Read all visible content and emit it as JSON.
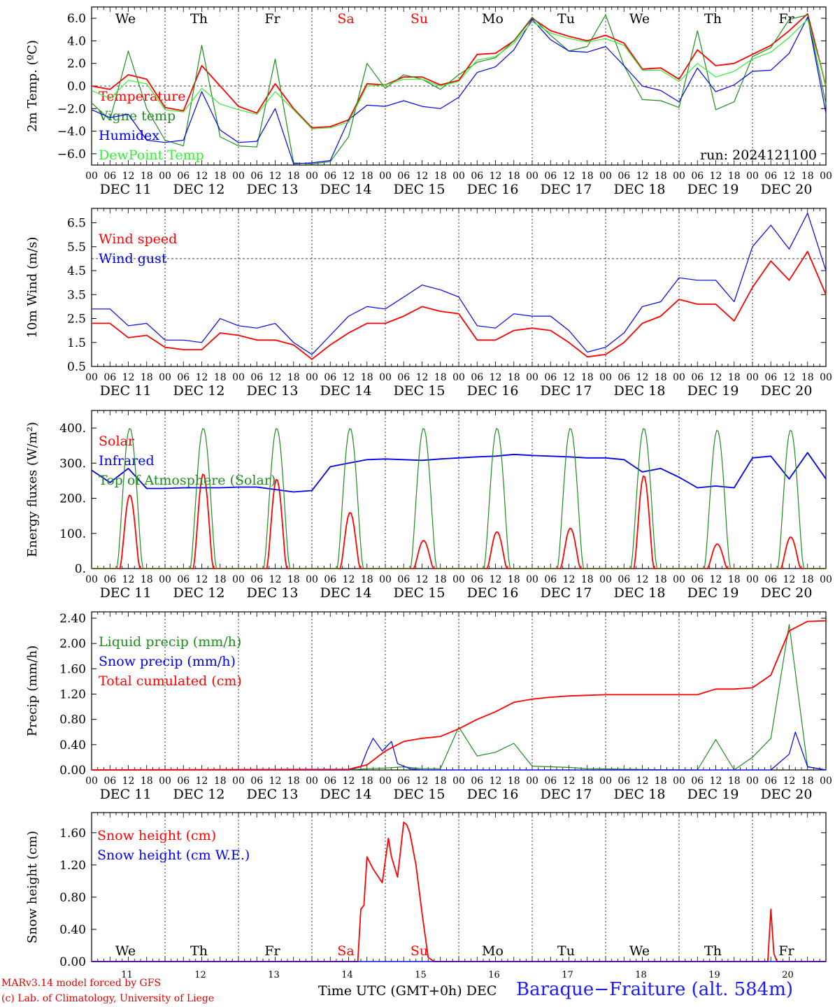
{
  "run_label": "run: 2024121100",
  "footer": {
    "credit_line1": "MARv3.14 model forced by GFS",
    "credit_line2": "(c) Lab. of Climatology, University of Liege",
    "time_axis": "Time UTC (GMT+0h)",
    "station": "Baraque−Fraiture (alt. 584m)"
  },
  "colors": {
    "red": "#ff0000",
    "green": "#1e8c1e",
    "blue": "#0000ee",
    "light_green": "#33ee33",
    "weekend": "#ff0000"
  },
  "days": [
    {
      "abbr": "We",
      "date": "DEC 11",
      "num": "11",
      "weekend": false
    },
    {
      "abbr": "Th",
      "date": "DEC 12",
      "num": "12",
      "weekend": false
    },
    {
      "abbr": "Fr",
      "date": "DEC 13",
      "num": "13",
      "weekend": false
    },
    {
      "abbr": "Sa",
      "date": "DEC 14",
      "num": "14",
      "weekend": true
    },
    {
      "abbr": "Su",
      "date": "DEC 15",
      "num": "15",
      "weekend": true
    },
    {
      "abbr": "Mo",
      "date": "DEC 16",
      "num": "16",
      "weekend": false
    },
    {
      "abbr": "Tu",
      "date": "DEC 17",
      "num": "17",
      "weekend": false
    },
    {
      "abbr": "We",
      "date": "DEC 18",
      "num": "18",
      "weekend": false
    },
    {
      "abbr": "Th",
      "date": "DEC 19",
      "num": "19",
      "weekend": false
    },
    {
      "abbr": "Fr",
      "date": "DEC 20",
      "num": "20",
      "weekend": false
    }
  ],
  "hour_labels": [
    "00",
    "06",
    "12",
    "18"
  ],
  "last_hour_label": "00",
  "dec_label": "DEC",
  "chart_data": [
    {
      "id": "temperature",
      "type": "line",
      "ylabel": "2m Temp. (ºC)",
      "ylim": [
        -7,
        7
      ],
      "yticks": [
        "6.0",
        "4.0",
        "2.0",
        "0.0",
        "−2.0",
        "−4.0",
        "−6.0"
      ],
      "ytick_values": [
        6,
        4,
        2,
        0,
        -2,
        -4,
        -6
      ],
      "reference_line": 0,
      "x_unit": "hours since Dec 11 00 UTC",
      "series": [
        {
          "name": "Temperature",
          "color": "red",
          "x": [
            0,
            6,
            12,
            18,
            24,
            30,
            36,
            42,
            48,
            54,
            60,
            66,
            72,
            78,
            84,
            90,
            96,
            102,
            108,
            114,
            120,
            126,
            132,
            138,
            144,
            150,
            156,
            162,
            168,
            174,
            180,
            186,
            192,
            198,
            204,
            210,
            216,
            222,
            228,
            234,
            240
          ],
          "values": [
            0,
            -0.3,
            1.0,
            0.6,
            -1.9,
            -2.2,
            1.8,
            0,
            -1.8,
            -2.4,
            0.2,
            -2.0,
            -3.7,
            -3.6,
            -3.0,
            0.2,
            0.1,
            0.8,
            0.8,
            0.1,
            0.5,
            2.8,
            2.9,
            4.0,
            6.0,
            4.9,
            4.4,
            4.0,
            4.5,
            3.8,
            1.5,
            1.6,
            0.6,
            3.2,
            1.8,
            2.0,
            2.8,
            3.6,
            4.9,
            6.4,
            0
          ]
        },
        {
          "name": "Vigne temp",
          "color": "green",
          "x": [
            0,
            6,
            12,
            18,
            24,
            30,
            36,
            42,
            48,
            54,
            60,
            66,
            72,
            78,
            84,
            90,
            96,
            102,
            108,
            114,
            120,
            126,
            132,
            138,
            144,
            150,
            156,
            162,
            168,
            174,
            180,
            186,
            192,
            198,
            204,
            210,
            216,
            222,
            228,
            234,
            240
          ],
          "values": [
            -1.5,
            -3.0,
            3.1,
            -2.0,
            -4.8,
            -5.3,
            3.6,
            -4.5,
            -5.3,
            -5.4,
            2.4,
            -6.8,
            -6.9,
            -6.7,
            -4.5,
            2.0,
            -0.2,
            1.0,
            0.6,
            -0.3,
            1.0,
            2.1,
            2.5,
            4.0,
            6.1,
            4.5,
            3.1,
            3.5,
            6.3,
            1.8,
            -1.2,
            -1.3,
            -1.9,
            4.9,
            -2.1,
            -1.4,
            2.6,
            3.4,
            5.9,
            6.3,
            -1.6
          ]
        },
        {
          "name": "Humidex",
          "color": "blue",
          "x": [
            0,
            6,
            12,
            18,
            24,
            30,
            36,
            42,
            48,
            54,
            60,
            66,
            72,
            78,
            84,
            90,
            96,
            102,
            108,
            114,
            120,
            126,
            132,
            138,
            144,
            150,
            156,
            162,
            168,
            174,
            180,
            186,
            192,
            198,
            204,
            210,
            216,
            222,
            228,
            234,
            240
          ],
          "values": [
            -2.1,
            -2.8,
            -2.5,
            -4.8,
            -5.0,
            -4.8,
            -0.5,
            -3.9,
            -5.0,
            -4.9,
            -2.0,
            -6.9,
            -6.8,
            -6.6,
            -3.0,
            -1.7,
            -1.8,
            -1.3,
            -1.8,
            -2.0,
            -1.0,
            1.2,
            1.7,
            3.2,
            5.9,
            4.1,
            3.1,
            3.0,
            3.5,
            1.8,
            0,
            -0.4,
            -1.4,
            1.6,
            -0.5,
            0.1,
            1.3,
            1.4,
            2.9,
            6.1,
            -2.4
          ]
        },
        {
          "name": "DewPoint Temp",
          "color": "light_green",
          "x": [
            0,
            6,
            12,
            18,
            24,
            30,
            36,
            42,
            48,
            54,
            60,
            66,
            72,
            78,
            84,
            90,
            96,
            102,
            108,
            114,
            120,
            126,
            132,
            138,
            144,
            150,
            156,
            162,
            168,
            174,
            180,
            186,
            192,
            198,
            204,
            210,
            216,
            222,
            228,
            234,
            240
          ],
          "values": [
            -0.4,
            -1.1,
            0.5,
            0.2,
            -2.1,
            -2.3,
            -0.2,
            -1.6,
            -2.1,
            -2.5,
            -0.5,
            -2.1,
            -3.8,
            -3.7,
            -3.2,
            0,
            0.1,
            0.6,
            0.6,
            0,
            0.4,
            2.3,
            2.6,
            3.8,
            5.7,
            4.7,
            4.2,
            3.9,
            4.2,
            3.6,
            1.4,
            1.4,
            0.4,
            2.0,
            0.8,
            1.3,
            2.4,
            3.0,
            4.3,
            5.9,
            0.1
          ]
        }
      ]
    },
    {
      "id": "wind",
      "type": "line",
      "ylabel": "10m Wind (m/s)",
      "ylim": [
        0.5,
        7.1
      ],
      "yticks": [
        "6.5",
        "5.5",
        "4.5",
        "3.5",
        "2.5",
        "1.5",
        "0.5"
      ],
      "ytick_values": [
        6.5,
        5.5,
        4.5,
        3.5,
        2.5,
        1.5,
        0.5
      ],
      "reference_line": 5,
      "x_unit": "hours since Dec 11 00 UTC",
      "series": [
        {
          "name": "Wind speed",
          "color": "red",
          "x": [
            0,
            6,
            12,
            18,
            24,
            30,
            36,
            42,
            48,
            54,
            60,
            66,
            72,
            78,
            84,
            90,
            96,
            102,
            108,
            114,
            120,
            126,
            132,
            138,
            144,
            150,
            156,
            162,
            168,
            174,
            180,
            186,
            192,
            198,
            204,
            210,
            216,
            222,
            228,
            234,
            240
          ],
          "values": [
            2.3,
            2.3,
            1.7,
            1.8,
            1.3,
            1.2,
            1.2,
            1.9,
            1.8,
            1.6,
            1.6,
            1.4,
            0.8,
            1.4,
            1.9,
            2.3,
            2.3,
            2.6,
            3.0,
            2.8,
            2.7,
            1.6,
            1.6,
            2.0,
            2.1,
            2.0,
            1.5,
            0.9,
            1.0,
            1.5,
            2.3,
            2.6,
            3.3,
            3.1,
            3.1,
            2.4,
            3.8,
            4.9,
            4.1,
            5.3,
            3.5
          ]
        },
        {
          "name": "Wind gust",
          "color": "blue",
          "x": [
            0,
            6,
            12,
            18,
            24,
            30,
            36,
            42,
            48,
            54,
            60,
            66,
            72,
            78,
            84,
            90,
            96,
            102,
            108,
            114,
            120,
            126,
            132,
            138,
            144,
            150,
            156,
            162,
            168,
            174,
            180,
            186,
            192,
            198,
            204,
            210,
            216,
            222,
            228,
            234,
            240
          ],
          "values": [
            2.9,
            2.9,
            2.2,
            2.3,
            1.6,
            1.6,
            1.5,
            2.5,
            2.2,
            2.1,
            2.3,
            1.5,
            1.0,
            1.8,
            2.6,
            3.0,
            2.9,
            3.4,
            3.9,
            3.7,
            3.4,
            2.2,
            2.1,
            2.7,
            2.6,
            2.6,
            2.0,
            1.1,
            1.3,
            1.9,
            3.0,
            3.2,
            4.2,
            4.1,
            4.1,
            3.2,
            5.5,
            6.4,
            5.4,
            6.9,
            4.5
          ]
        }
      ]
    },
    {
      "id": "energy",
      "type": "line",
      "ylabel": "Energy fluxes (W/m²)",
      "ylim": [
        0,
        450
      ],
      "yticks": [
        "400.",
        "300.",
        "200.",
        "100.",
        "0."
      ],
      "ytick_values": [
        400,
        300,
        200,
        100,
        0
      ],
      "x_unit": "hours since Dec 11 00 UTC",
      "series": [
        {
          "name": "Solar",
          "color": "red",
          "peaks": [
            210,
            270,
            255,
            160,
            80,
            105,
            115,
            265,
            70,
            90
          ]
        },
        {
          "name": "Infrared",
          "color": "blue",
          "x": [
            0,
            6,
            12,
            18,
            24,
            30,
            36,
            42,
            48,
            54,
            60,
            66,
            72,
            78,
            84,
            90,
            96,
            102,
            108,
            114,
            120,
            126,
            132,
            138,
            144,
            150,
            156,
            162,
            168,
            174,
            180,
            186,
            192,
            198,
            204,
            210,
            216,
            222,
            228,
            234,
            240
          ],
          "values": [
            280,
            245,
            285,
            228,
            228,
            230,
            230,
            230,
            232,
            232,
            225,
            218,
            222,
            290,
            300,
            310,
            312,
            310,
            308,
            312,
            315,
            318,
            320,
            325,
            322,
            320,
            318,
            315,
            315,
            310,
            275,
            285,
            260,
            230,
            235,
            230,
            315,
            320,
            255,
            330,
            255
          ]
        },
        {
          "name": "Top of Atmosphere (Solar)",
          "color": "green",
          "peaks": [
            400,
            400,
            400,
            400,
            400,
            400,
            400,
            400,
            395,
            395
          ]
        }
      ]
    },
    {
      "id": "precip",
      "type": "line",
      "ylabel": "Precip (mm/h)",
      "ylim": [
        0,
        2.5
      ],
      "yticks": [
        "2.40",
        "2.00",
        "1.60",
        "1.20",
        "0.80",
        "0.40",
        "0.00"
      ],
      "ytick_values": [
        2.4,
        2.0,
        1.6,
        1.2,
        0.8,
        0.4,
        0
      ],
      "x_unit": "hours since Dec 11 00 UTC",
      "series": [
        {
          "name": "Liquid precip (mm/h)",
          "color": "green",
          "x": [
            0,
            84,
            90,
            96,
            102,
            108,
            114,
            120,
            126,
            132,
            138,
            144,
            150,
            156,
            162,
            192,
            198,
            204,
            210,
            216,
            222,
            228,
            234,
            240
          ],
          "values": [
            0,
            0,
            0.02,
            0.03,
            0.05,
            0.02,
            0.02,
            0.68,
            0.22,
            0.28,
            0.42,
            0.06,
            0.05,
            0.04,
            0.02,
            0,
            0,
            0.48,
            0,
            0.2,
            0.5,
            2.3,
            0.05,
            0
          ]
        },
        {
          "name": "Snow precip (mm/h)",
          "color": "blue",
          "x": [
            0,
            84,
            88,
            90,
            92,
            95,
            98,
            100,
            104,
            108,
            112,
            120,
            150,
            222,
            228,
            230,
            234,
            240
          ],
          "values": [
            0,
            0,
            0.05,
            0.3,
            0.5,
            0.3,
            0.45,
            0.1,
            0.02,
            0,
            0,
            0,
            0,
            0,
            0.25,
            0.6,
            0.05,
            0
          ]
        },
        {
          "name": "Total cumulated (cm)",
          "color": "red",
          "x": [
            0,
            84,
            90,
            96,
            102,
            108,
            114,
            120,
            126,
            132,
            138,
            144,
            150,
            156,
            162,
            168,
            174,
            180,
            186,
            192,
            198,
            204,
            210,
            216,
            222,
            228,
            234,
            240
          ],
          "values": [
            0,
            0.01,
            0.08,
            0.3,
            0.45,
            0.5,
            0.53,
            0.65,
            0.8,
            0.92,
            1.07,
            1.12,
            1.15,
            1.17,
            1.18,
            1.19,
            1.19,
            1.19,
            1.19,
            1.19,
            1.19,
            1.28,
            1.28,
            1.3,
            1.5,
            2.2,
            2.35,
            2.36
          ]
        }
      ]
    },
    {
      "id": "snow",
      "type": "line",
      "ylabel": "Snow height (cm)",
      "ylim": [
        0,
        1.85
      ],
      "yticks": [
        "1.60",
        "1.20",
        "0.80",
        "0.40",
        "0.00"
      ],
      "ytick_values": [
        1.6,
        1.2,
        0.8,
        0.4,
        0
      ],
      "x_unit": "hours since Dec 11 00 UTC",
      "series": [
        {
          "name": "Snow height (cm)",
          "color": "red",
          "x": [
            0,
            87,
            88,
            89,
            90,
            92,
            95,
            97,
            98,
            100,
            102,
            103,
            104,
            106,
            108,
            110,
            112,
            113,
            221,
            222,
            223,
            224,
            240
          ],
          "values": [
            0,
            0,
            0.65,
            0.7,
            1.3,
            1.15,
            0.98,
            1.53,
            1.3,
            1.05,
            1.73,
            1.7,
            1.6,
            1.2,
            0.6,
            0.05,
            0,
            0,
            0,
            0.65,
            0.1,
            0,
            0
          ]
        },
        {
          "name": "Snow height (cm W.E.)",
          "color": "blue",
          "x": [
            0,
            240
          ],
          "values": [
            0,
            0
          ]
        }
      ]
    }
  ]
}
